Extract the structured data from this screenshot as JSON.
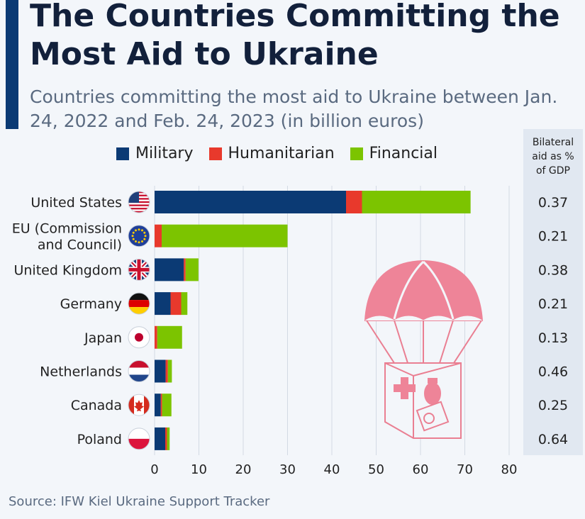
{
  "title": "The Countries Committing the Most Aid to Ukraine",
  "subtitle": "Countries committing the most aid to Ukraine between Jan. 24, 2022 and Feb. 24, 2023 (in billion euros)",
  "legend": [
    {
      "label": "Military",
      "color": "#0b3a74"
    },
    {
      "label": "Humanitarian",
      "color": "#e8392c"
    },
    {
      "label": "Financial",
      "color": "#7cc400"
    }
  ],
  "gdp_header": [
    "Bilateral",
    "aid as %",
    "of GDP"
  ],
  "source": "Source: IFW Kiel Ukraine Support Tracker",
  "chart_data": {
    "type": "bar",
    "orientation": "horizontal",
    "stacked": true,
    "title": "The Countries Committing the Most Aid to Ukraine",
    "subtitle": "Countries committing the most aid to Ukraine between Jan. 24, 2022 and Feb. 24, 2023 (in billion euros)",
    "xlabel": "",
    "ylabel": "",
    "xlim": [
      0,
      80
    ],
    "xticks": [
      0,
      10,
      20,
      30,
      40,
      50,
      60,
      70,
      80
    ],
    "grid": true,
    "legend_position": "top",
    "categories": [
      [
        "United States"
      ],
      [
        "EU (Commission",
        "and Council)"
      ],
      [
        "United Kingdom"
      ],
      [
        "Germany"
      ],
      [
        "Japan"
      ],
      [
        "Netherlands"
      ],
      [
        "Canada"
      ],
      [
        "Poland"
      ]
    ],
    "flags": [
      "us",
      "eu",
      "uk",
      "de",
      "jp",
      "nl",
      "ca",
      "pl"
    ],
    "series": [
      {
        "name": "Military",
        "color": "#0b3a74",
        "values": [
          43.2,
          0,
          6.6,
          3.6,
          0,
          2.5,
          1.4,
          2.4
        ]
      },
      {
        "name": "Humanitarian",
        "color": "#e8392c",
        "values": [
          3.6,
          1.6,
          0.4,
          2.4,
          0.6,
          0.5,
          0.3,
          0.4
        ]
      },
      {
        "name": "Financial",
        "color": "#7cc400",
        "values": [
          24.5,
          28.4,
          2.9,
          1.4,
          5.6,
          0.9,
          2.1,
          0.6
        ]
      }
    ],
    "gdp_percent": [
      "0.37",
      "0.21",
      "0.38",
      "0.21",
      "0.13",
      "0.46",
      "0.25",
      "0.64"
    ]
  }
}
